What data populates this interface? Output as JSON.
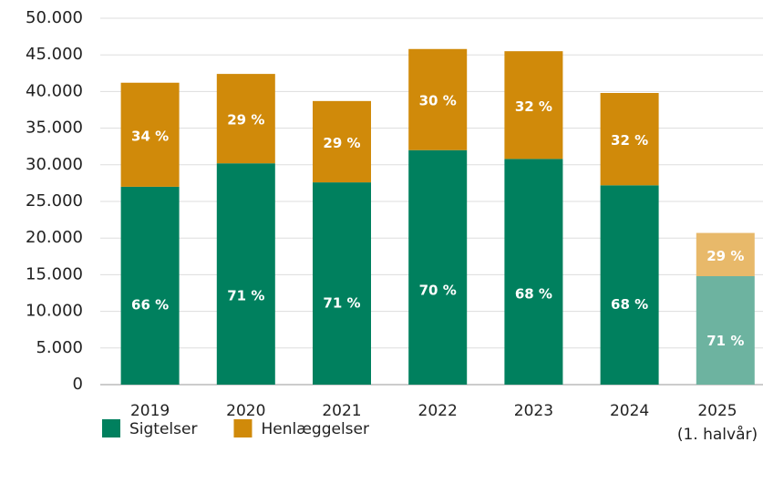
{
  "chart_data": {
    "type": "stacked_bar",
    "categories": [
      "2019",
      "2020",
      "2021",
      "2022",
      "2023",
      "2024",
      "2025 (1. halvår)"
    ],
    "series": [
      {
        "name": "Sigtelser",
        "color": "#00805e",
        "colors": [
          "#00805e",
          "#00805e",
          "#00805e",
          "#00805e",
          "#00805e",
          "#00805e",
          "#6db3a0"
        ],
        "values": [
          27000,
          30200,
          27600,
          32000,
          30800,
          27200,
          14800
        ],
        "shares": [
          "66 %",
          "71 %",
          "71 %",
          "70 %",
          "68 %",
          "68 %",
          "71 %"
        ]
      },
      {
        "name": "Henlæggelser",
        "color": "#d08a0a",
        "colors": [
          "#d08a0a",
          "#d08a0a",
          "#d08a0a",
          "#d08a0a",
          "#d08a0a",
          "#d08a0a",
          "#e8b96a"
        ],
        "values": [
          14200,
          12200,
          11100,
          13800,
          14700,
          12600,
          5900
        ],
        "shares": [
          "34 %",
          "29 %",
          "29 %",
          "30 %",
          "32 %",
          "32 %",
          "29 %"
        ]
      }
    ],
    "ylim": [
      0,
      50000
    ],
    "yticks": [
      0,
      {
        "value": 5000,
        "label": "5.000"
      },
      {
        "value": 10000,
        "label": "10.000"
      },
      {
        "value": 15000,
        "label": "15.000"
      },
      {
        "value": 20000,
        "label": "20.000"
      },
      {
        "value": 25000,
        "label": "25.000"
      },
      {
        "value": 30000,
        "label": "30.000"
      },
      {
        "value": 35000,
        "label": "35.000"
      },
      {
        "value": 40000,
        "label": "40.000"
      },
      {
        "value": 45000,
        "label": "45.000"
      },
      {
        "value": 50000,
        "label": "50.000"
      }
    ],
    "grid": true,
    "legend": "bottom"
  }
}
